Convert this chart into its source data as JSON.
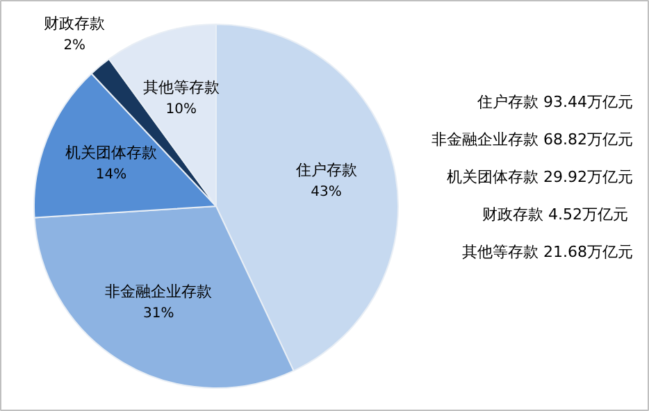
{
  "chart_data": {
    "type": "pie",
    "categories": [
      "住户存款",
      "非金融企业存款",
      "机关团体存款",
      "财政存款",
      "其他等存款"
    ],
    "values": [
      43,
      31,
      14,
      2,
      10
    ],
    "colors": [
      "#c6d9f0",
      "#8db3e2",
      "#558ed5",
      "#17375e",
      "#dfe8f5"
    ],
    "value_labels": [
      "43%",
      "31%",
      "14%",
      "2%",
      "10%"
    ],
    "annotations": [
      "住户存款 93.44万亿元",
      "非金融企业存款 68.82万亿元",
      "机关团体存款 29.92万亿元",
      "财政存款  4.52万亿元",
      "其他等存款 21.68万亿元"
    ]
  }
}
